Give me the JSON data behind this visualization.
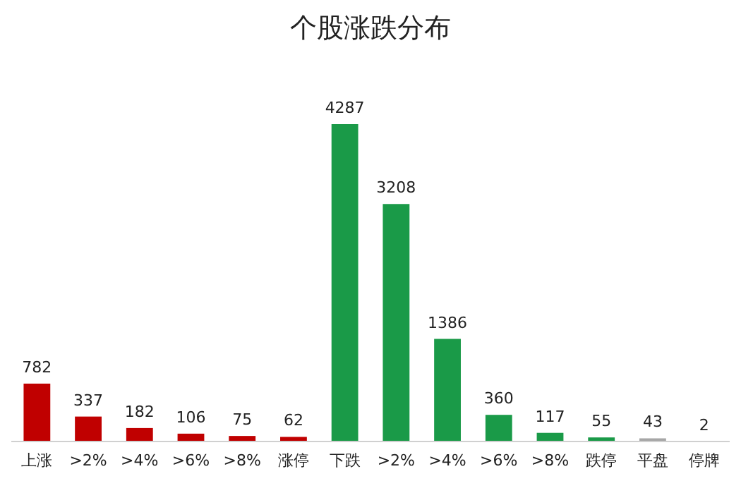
{
  "chart_data": {
    "type": "bar",
    "title": "个股涨跌分布",
    "categories": [
      "上涨",
      ">2%",
      ">4%",
      ">6%",
      ">8%",
      "涨停",
      "下跌",
      ">2%",
      ">4%",
      ">6%",
      ">8%",
      "跌停",
      "平盘",
      "停牌"
    ],
    "values": [
      782,
      337,
      182,
      106,
      75,
      62,
      4287,
      3208,
      1386,
      360,
      117,
      55,
      43,
      2
    ],
    "colors": [
      "#c00000",
      "#c00000",
      "#c00000",
      "#c00000",
      "#c00000",
      "#c00000",
      "#1a9a48",
      "#1a9a48",
      "#1a9a48",
      "#1a9a48",
      "#1a9a48",
      "#1a9a48",
      "#a6a6a6",
      "#a6a6a6"
    ],
    "data_labels": true
  }
}
